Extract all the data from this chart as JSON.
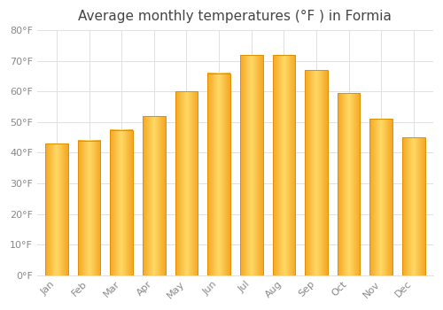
{
  "title": "Average monthly temperatures (°F ) in Formia",
  "months": [
    "Jan",
    "Feb",
    "Mar",
    "Apr",
    "May",
    "Jun",
    "Jul",
    "Aug",
    "Sep",
    "Oct",
    "Nov",
    "Dec"
  ],
  "values": [
    43,
    44,
    47.5,
    52,
    60,
    66,
    72,
    72,
    67,
    59.5,
    51,
    45
  ],
  "bar_color_center": "#FFD966",
  "bar_color_edge": "#F5A623",
  "bar_border_color": "#E09000",
  "ylim": [
    0,
    80
  ],
  "yticks": [
    0,
    10,
    20,
    30,
    40,
    50,
    60,
    70,
    80
  ],
  "ytick_labels": [
    "0°F",
    "10°F",
    "20°F",
    "30°F",
    "40°F",
    "50°F",
    "60°F",
    "70°F",
    "80°F"
  ],
  "background_color": "#FFFFFF",
  "grid_color": "#E0E0E0",
  "title_fontsize": 11,
  "tick_fontsize": 8,
  "tick_color": "#888888",
  "bar_width": 0.7
}
